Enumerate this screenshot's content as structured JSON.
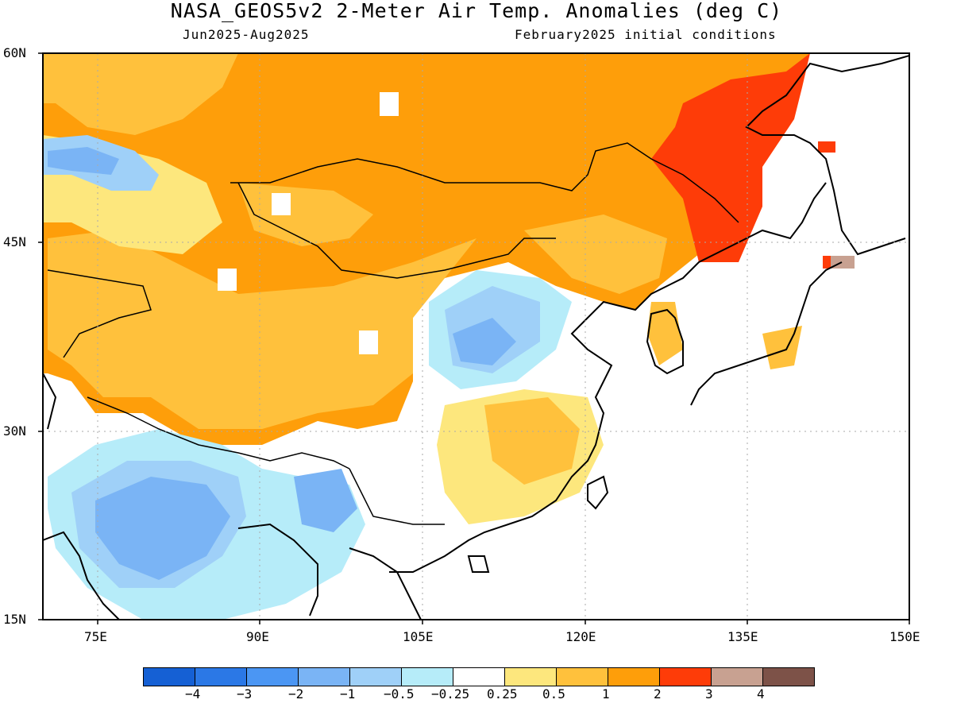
{
  "title": "NASA_GEOS5v2 2-Meter Air Temp. Anomalies (deg C)",
  "subtitle_left": "Jun2025-Aug2025",
  "subtitle_right": "February2025 initial conditions",
  "lat_labels": [
    "60N",
    "45N",
    "30N",
    "15N"
  ],
  "lon_labels": [
    "75E",
    "90E",
    "105E",
    "120E",
    "135E",
    "150E"
  ],
  "colorbar": {
    "colors": [
      "#1560d4",
      "#2b78e6",
      "#4b96f3",
      "#7ab4f5",
      "#9fd0f8",
      "#b6ecf9",
      "#ffffff",
      "#fde77d",
      "#ffc13c",
      "#fe9e0a",
      "#fe3c08",
      "#c8a191",
      "#7d5248"
    ],
    "labels": [
      "−4",
      "−3",
      "−2",
      "−1",
      "−0.5",
      "−0.25",
      "0.25",
      "0.5",
      "1",
      "2",
      "3",
      "4"
    ]
  },
  "colors": {
    "land_outline": "#000000",
    "grid": "#aaaaaa"
  }
}
